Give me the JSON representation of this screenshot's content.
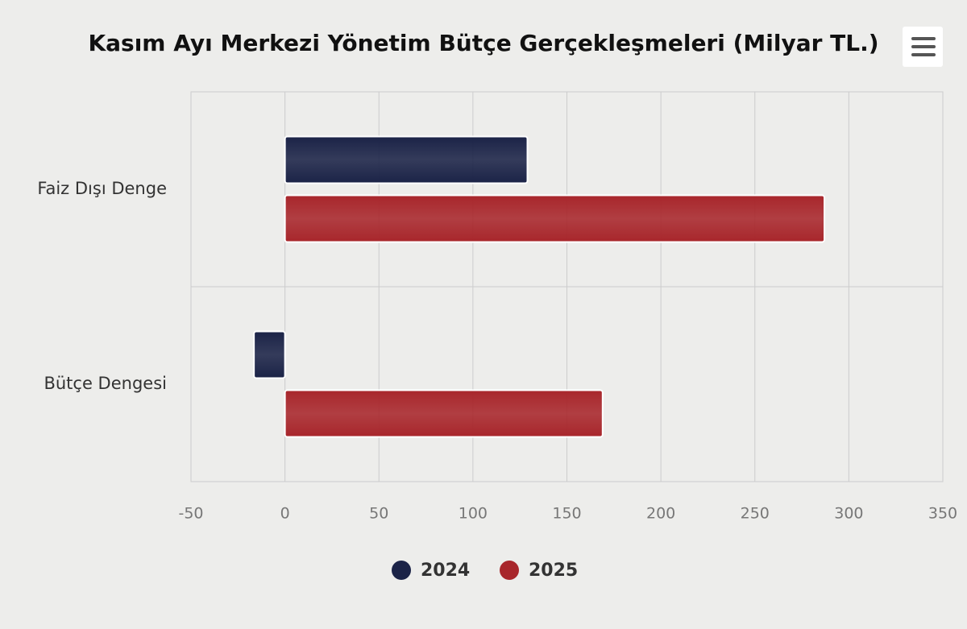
{
  "chart_data": {
    "type": "bar",
    "orientation": "horizontal",
    "title": "Kasım Ayı Merkezi Yönetim Bütçe Gerçekleşmeleri (Milyar TL.)",
    "categories": [
      "Faiz Dışı Denge",
      "Bütçe Dengesi"
    ],
    "series": [
      {
        "name": "2024",
        "color": "#1b2347",
        "values": [
          129,
          -16.5
        ]
      },
      {
        "name": "2025",
        "color": "#a8262b",
        "values": [
          287,
          169
        ]
      }
    ],
    "xlim": [
      -50,
      350
    ],
    "xticks": [
      -50,
      0,
      50,
      100,
      150,
      200,
      250,
      300,
      350
    ],
    "grid": true,
    "legend": "bottom"
  }
}
